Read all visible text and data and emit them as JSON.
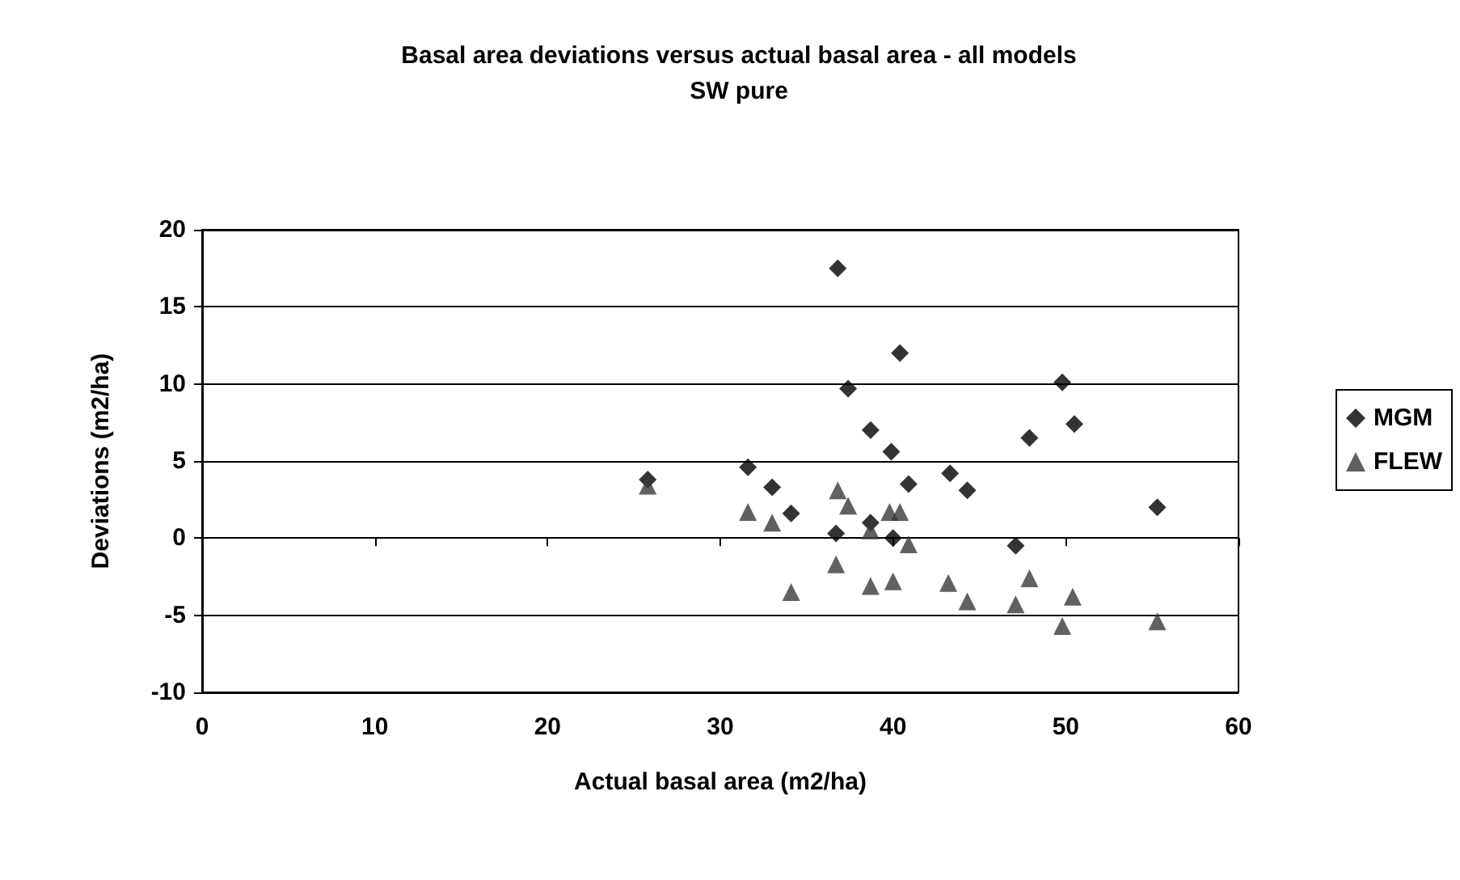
{
  "chart_data": {
    "type": "scatter",
    "title": "Basal area deviations versus actual basal area - all models",
    "subtitle": "SW pure",
    "xlabel": "Actual basal area (m2/ha)",
    "ylabel": "Deviations (m2/ha)",
    "xlim": [
      0,
      60
    ],
    "xticks": [
      0,
      10,
      20,
      30,
      40,
      50,
      60
    ],
    "ylim": [
      -10,
      20
    ],
    "yticks": [
      -10,
      -5,
      0,
      5,
      10,
      15,
      20
    ],
    "grid": "y",
    "legend": "right",
    "series": [
      {
        "name": "MGM",
        "color": "#000000",
        "marker": "diamond",
        "x": [
          25.8,
          36.8,
          40.4,
          37.4,
          49.8,
          50.5,
          38.7,
          47.9,
          39.9,
          31.6,
          43.3,
          33.0,
          40.9,
          44.3,
          34.1,
          55.3,
          38.7,
          36.7,
          40.0,
          47.1
        ],
        "values": [
          3.8,
          17.5,
          12.0,
          9.7,
          10.1,
          7.4,
          7.0,
          6.5,
          5.6,
          4.6,
          4.2,
          3.3,
          3.5,
          3.1,
          1.6,
          2.0,
          1.0,
          0.3,
          0.0,
          -0.5
        ]
      },
      {
        "name": "FLEW",
        "color": "#3a3a3a",
        "marker": "triangle",
        "x": [
          25.8,
          36.8,
          37.4,
          31.6,
          39.8,
          40.4,
          33.0,
          38.7,
          40.9,
          36.7,
          47.9,
          40.0,
          43.2,
          38.7,
          34.1,
          44.3,
          50.4,
          47.1,
          55.3,
          49.8
        ],
        "values": [
          3.4,
          3.1,
          2.1,
          1.7,
          1.7,
          1.7,
          1.0,
          0.5,
          -0.4,
          -1.7,
          -2.6,
          -2.8,
          -2.9,
          -3.1,
          -3.5,
          -4.1,
          -3.8,
          -4.3,
          -5.4,
          -5.7
        ]
      }
    ]
  }
}
